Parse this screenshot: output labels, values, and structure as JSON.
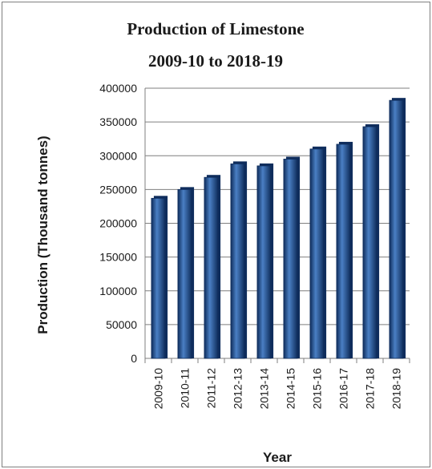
{
  "chart_data": {
    "type": "bar",
    "title": "Production of Limestone",
    "subtitle": "2009-10 to 2018-19",
    "xlabel": "Year",
    "ylabel": "Production (Thousand  tonnes)",
    "categories": [
      "2009-10",
      "2010-11",
      "2011-12",
      "2012-13",
      "2013-14",
      "2014-15",
      "2015-16",
      "2016-17",
      "2017-18",
      "2018-19"
    ],
    "values": [
      237000,
      250000,
      268000,
      288000,
      285000,
      295000,
      310000,
      317000,
      343000,
      382000
    ],
    "ylim": [
      0,
      400000
    ],
    "yticks": [
      0,
      50000,
      100000,
      150000,
      200000,
      250000,
      300000,
      350000,
      400000
    ],
    "grid": true,
    "legend": "none",
    "colors": {
      "bar": "#1f4e8f",
      "bar_highlight": "#4a7fc4",
      "bar_dark": "#0f2d5c",
      "grid": "#7f7f7f"
    }
  }
}
